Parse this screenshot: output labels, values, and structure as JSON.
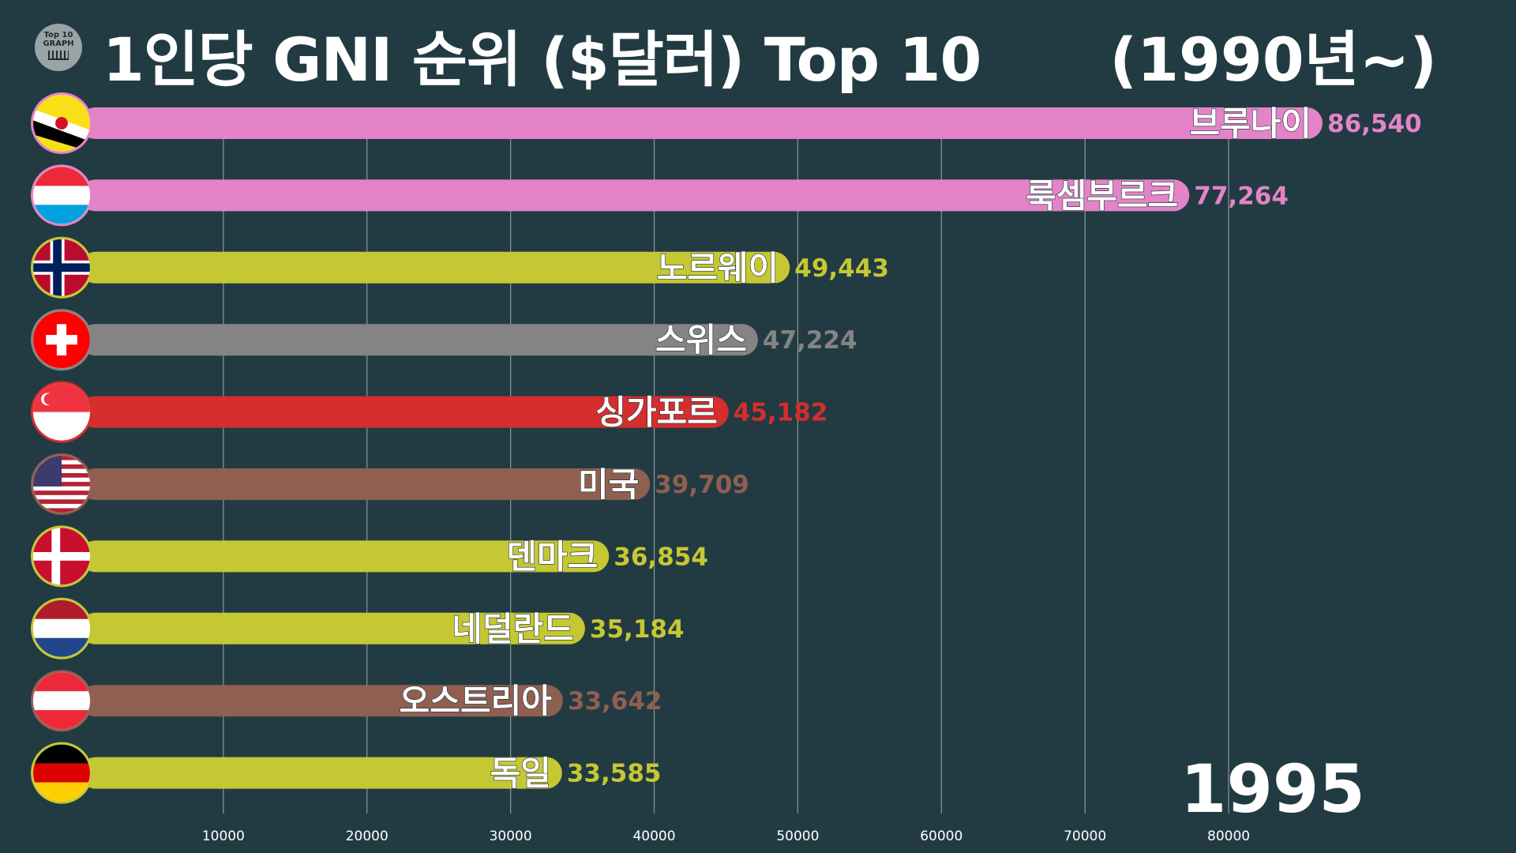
{
  "header": {
    "title": "1인당 GNI 순위 ($달러) Top 10",
    "subtitle": "(1990년~)",
    "logo_line1": "Top 10",
    "logo_line2": "GRAPH"
  },
  "year_label": "1995",
  "chart_data": {
    "type": "bar",
    "orientation": "horizontal",
    "title": "1인당 GNI 순위 ($달러) Top 10",
    "xlabel": "",
    "ylabel": "",
    "xlim": [
      0,
      86540
    ],
    "x_ticks": [
      10000,
      20000,
      30000,
      40000,
      50000,
      60000,
      70000,
      80000
    ],
    "grid": true,
    "categories": [
      "브루나이",
      "룩셈부르크",
      "노르웨이",
      "스위스",
      "싱가포르",
      "미국",
      "덴마크",
      "네덜란드",
      "오스트리아",
      "독일"
    ],
    "values": [
      86540,
      77264,
      49443,
      47224,
      45182,
      39709,
      36854,
      35184,
      33642,
      33585
    ],
    "value_labels": [
      "86,540",
      "77,264",
      "49,443",
      "47,224",
      "45,182",
      "39,709",
      "36,854",
      "35,184",
      "33,642",
      "33,585"
    ],
    "colors": [
      "#e483c8",
      "#e483c8",
      "#c5c832",
      "#848484",
      "#d62d2d",
      "#8f5f50",
      "#c5c832",
      "#c5c832",
      "#8f5f50",
      "#c5c832"
    ],
    "flags": [
      "brunei-flag",
      "luxembourg-flag",
      "norway-flag",
      "switzerland-flag",
      "singapore-flag",
      "usa-flag",
      "denmark-flag",
      "netherlands-flag",
      "austria-flag",
      "germany-flag"
    ]
  },
  "colors": {
    "background": "#223b42",
    "grid": "#8a9a9e",
    "text": "#ffffff"
  }
}
